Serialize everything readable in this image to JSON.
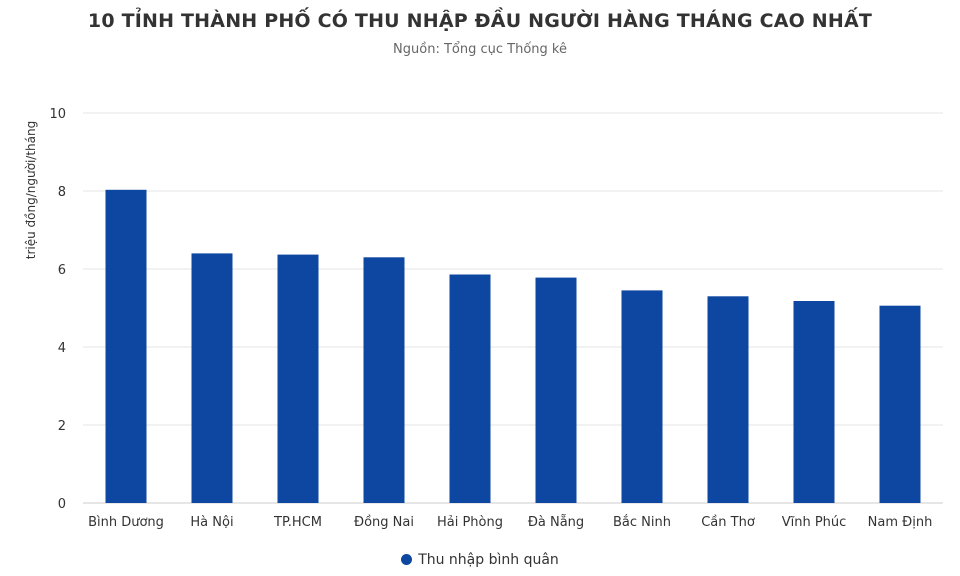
{
  "chart_data": {
    "type": "bar",
    "title": "10 TỈNH THÀNH PHỐ CÓ THU NHẬP ĐẦU NGƯỜI HÀNG THÁNG CAO NHẤT",
    "subtitle": "Nguồn: Tổng cục Thống kê",
    "ylabel": "triệu đồng/người/tháng",
    "xlabel": "",
    "ylim": [
      0,
      10
    ],
    "yticks": [
      0,
      2,
      4,
      6,
      8,
      10
    ],
    "grid": true,
    "legend_position": "bottom",
    "categories": [
      "Bình Dương",
      "Hà Nội",
      "TP.HCM",
      "Đồng Nai",
      "Hải Phòng",
      "Đà Nẵng",
      "Bắc Ninh",
      "Cần Thơ",
      "Vĩnh Phúc",
      "Nam Định"
    ],
    "series": [
      {
        "name": "Thu nhập bình quân",
        "color": "#0d47a1",
        "values": [
          8.03,
          6.4,
          6.37,
          6.3,
          5.86,
          5.78,
          5.45,
          5.3,
          5.18,
          5.06
        ]
      }
    ]
  }
}
